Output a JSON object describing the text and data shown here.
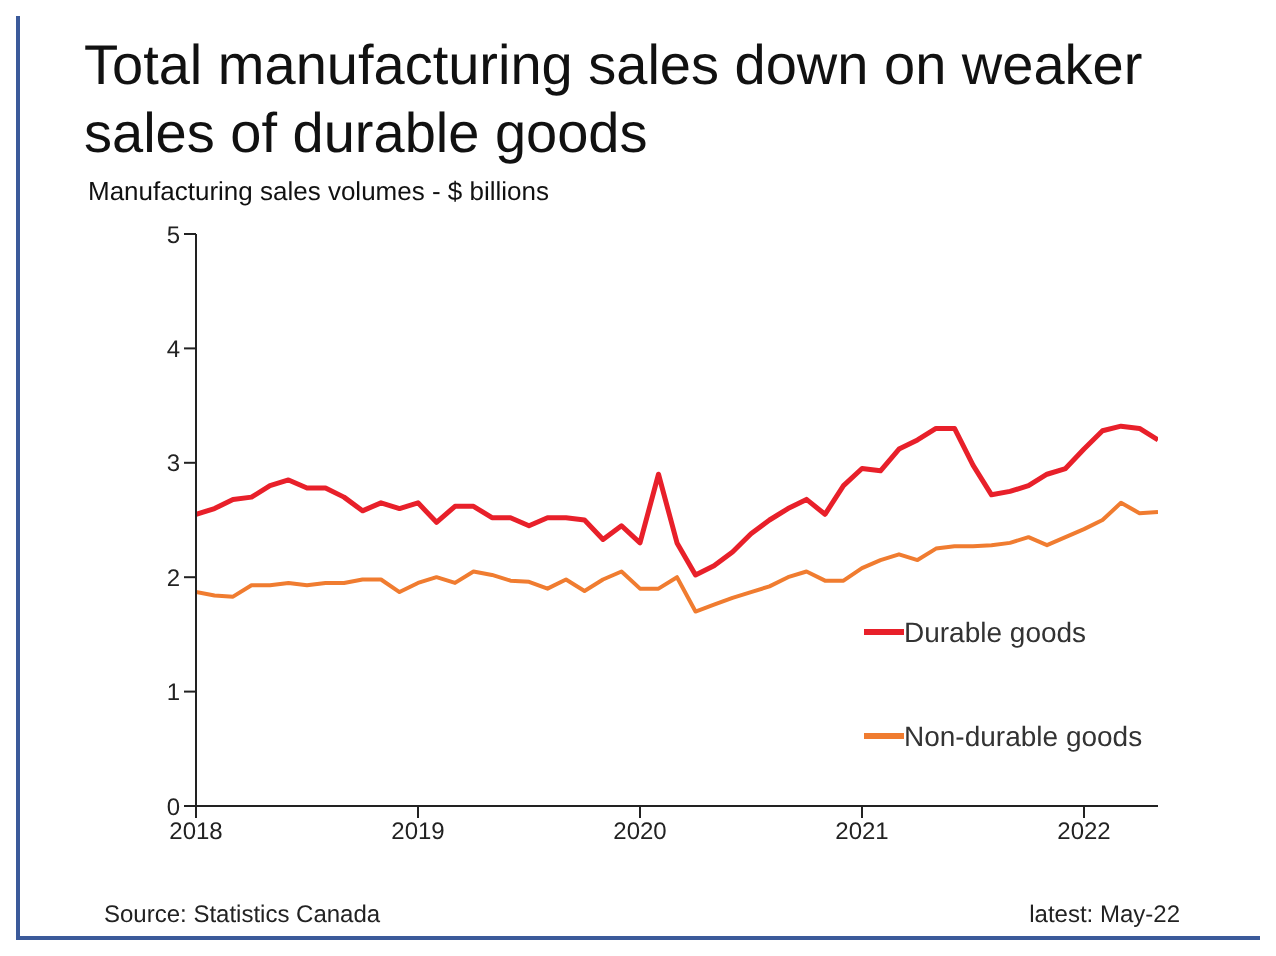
{
  "chart_data": {
    "type": "line",
    "title": "Total manufacturing sales down on weaker sales of durable goods",
    "subtitle": "Manufacturing sales volumes - $ billions",
    "annotations": [
      "Source: Statistics Canada",
      "latest: May-22"
    ],
    "x": [
      "2018-01",
      "2018-02",
      "2018-03",
      "2018-04",
      "2018-05",
      "2018-06",
      "2018-07",
      "2018-08",
      "2018-09",
      "2018-10",
      "2018-11",
      "2018-12",
      "2019-01",
      "2019-02",
      "2019-03",
      "2019-04",
      "2019-05",
      "2019-06",
      "2019-07",
      "2019-08",
      "2019-09",
      "2019-10",
      "2019-11",
      "2019-12",
      "2020-01",
      "2020-02",
      "2020-03",
      "2020-04",
      "2020-05",
      "2020-06",
      "2020-07",
      "2020-08",
      "2020-09",
      "2020-10",
      "2020-11",
      "2020-12",
      "2021-01",
      "2021-02",
      "2021-03",
      "2021-04",
      "2021-05",
      "2021-06",
      "2021-07",
      "2021-08",
      "2021-09",
      "2021-10",
      "2021-11",
      "2021-12",
      "2022-01",
      "2022-02",
      "2022-03",
      "2022-04",
      "2022-05"
    ],
    "series": [
      {
        "name": "Durable goods",
        "color": "#e8202a",
        "values": [
          2.55,
          2.6,
          2.68,
          2.7,
          2.8,
          2.85,
          2.78,
          2.78,
          2.7,
          2.58,
          2.65,
          2.6,
          2.65,
          2.48,
          2.62,
          2.62,
          2.52,
          2.52,
          2.45,
          2.52,
          2.52,
          2.5,
          2.33,
          2.45,
          2.3,
          2.9,
          2.3,
          2.02,
          2.1,
          2.22,
          2.38,
          2.5,
          2.6,
          2.68,
          2.55,
          2.8,
          2.95,
          2.93,
          3.12,
          3.2,
          3.3,
          3.3,
          2.98,
          2.72,
          2.75,
          2.8,
          2.9,
          2.95,
          3.12,
          3.28,
          3.32,
          3.3,
          3.2
        ]
      },
      {
        "name": "Non-durable goods",
        "color": "#f07c30",
        "values": [
          1.87,
          1.84,
          1.83,
          1.93,
          1.93,
          1.95,
          1.93,
          1.95,
          1.95,
          1.98,
          1.98,
          1.87,
          1.95,
          2.0,
          1.95,
          2.05,
          2.02,
          1.97,
          1.96,
          1.9,
          1.98,
          1.88,
          1.98,
          2.05,
          1.9,
          1.9,
          2.0,
          1.7,
          1.76,
          1.82,
          1.87,
          1.92,
          2.0,
          2.05,
          1.97,
          1.97,
          2.08,
          2.15,
          2.2,
          2.15,
          2.25,
          2.27,
          2.27,
          2.28,
          2.3,
          2.35,
          2.28,
          2.35,
          2.42,
          2.5,
          2.65,
          2.56,
          2.57
        ]
      }
    ],
    "xlim": [
      "2018-01",
      "2022-05"
    ],
    "xticks": [
      "2018",
      "2019",
      "2020",
      "2021",
      "2022"
    ],
    "ylim": [
      0,
      5
    ],
    "yticks": [
      0,
      1,
      2,
      3,
      4,
      5
    ],
    "legend": "right",
    "marker": "none",
    "line_style": "solid"
  }
}
